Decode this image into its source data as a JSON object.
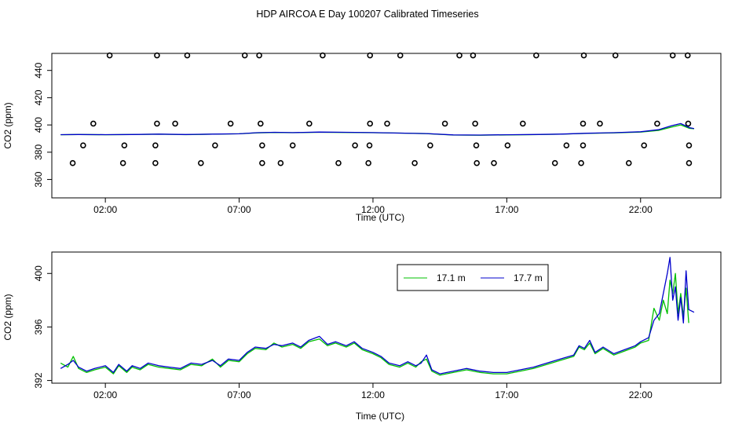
{
  "title": "HDP AIRCOA E  Day 100207  Calibrated Timeseries",
  "colors": {
    "series_17_1": "#00c000",
    "series_17_7": "#0000cc",
    "cal_points": "#000000",
    "background": "#ffffff"
  },
  "chart_data": [
    {
      "type": "line",
      "xlabel": "Time (UTC)",
      "ylabel": "CO2 (ppm)",
      "xlim": [
        0.0,
        25.0
      ],
      "ylim": [
        346.5,
        452.5
      ],
      "x_ticks": [
        2,
        7,
        12,
        17,
        22
      ],
      "x_tick_labels": [
        "02:00",
        "07:00",
        "12:00",
        "17:00",
        "22:00"
      ],
      "y_ticks": [
        360,
        380,
        400,
        420,
        440
      ],
      "y_tick_labels": [
        "360",
        "380",
        "400",
        "420",
        "440"
      ],
      "grid": false,
      "legend": "none",
      "cal_points": {
        "marker": "open-circle",
        "x": [
          2.16,
          3.93,
          5.06,
          7.21,
          7.75,
          10.12,
          11.89,
          13.02,
          15.23,
          15.74,
          18.1,
          19.88,
          21.06,
          23.2,
          23.76,
          1.55,
          3.93,
          4.61,
          6.68,
          7.8,
          9.62,
          11.89,
          12.53,
          14.69,
          15.82,
          17.6,
          19.85,
          20.48,
          22.62,
          23.78,
          1.17,
          2.71,
          3.87,
          6.1,
          7.86,
          9.0,
          11.33,
          11.87,
          14.14,
          15.86,
          17.03,
          19.23,
          19.85,
          22.13,
          23.81,
          0.78,
          2.66,
          3.87,
          5.57,
          7.86,
          8.55,
          10.71,
          11.83,
          13.56,
          15.88,
          16.52,
          18.8,
          19.78,
          21.56,
          23.81
        ],
        "y": [
          451,
          451,
          451,
          451,
          451,
          451,
          451,
          451,
          451,
          451,
          451,
          451,
          451,
          451,
          451,
          401,
          401,
          401,
          401,
          401,
          401,
          401,
          401,
          401,
          401,
          401,
          401,
          401,
          401,
          401,
          385,
          385,
          385,
          385,
          385,
          385,
          385,
          385,
          385,
          385,
          385,
          385,
          385,
          385,
          385,
          372,
          372,
          372,
          372,
          372,
          372,
          372,
          372,
          372,
          372,
          372,
          372,
          372,
          372,
          372
        ]
      },
      "series": [
        {
          "color": "#00c000",
          "x": [
            0.33,
            1.0,
            2.0,
            3.0,
            4.0,
            5.0,
            6.0,
            7.0,
            7.67,
            8.33,
            9.0,
            10.0,
            11.0,
            12.0,
            13.0,
            14.0,
            15.0,
            16.0,
            17.0,
            18.0,
            19.0,
            20.0,
            21.0,
            22.0,
            22.67,
            23.17,
            23.5,
            23.83,
            24.0
          ],
          "y": [
            392.8,
            393.0,
            392.8,
            393.0,
            393.2,
            392.9,
            393.2,
            393.5,
            394.2,
            394.5,
            394.3,
            394.6,
            394.5,
            394.3,
            394.0,
            393.6,
            392.6,
            392.5,
            392.7,
            392.9,
            393.2,
            393.8,
            394.2,
            394.8,
            396.0,
            398.5,
            400.0,
            397.5,
            397.2
          ]
        },
        {
          "color": "#0000cc",
          "x": [
            0.33,
            1.0,
            2.0,
            3.0,
            4.0,
            5.0,
            6.0,
            7.0,
            7.67,
            8.33,
            9.0,
            10.0,
            11.0,
            12.0,
            13.0,
            14.0,
            15.0,
            16.0,
            17.0,
            18.0,
            19.0,
            20.0,
            21.0,
            22.0,
            22.67,
            23.17,
            23.5,
            23.83,
            24.0
          ],
          "y": [
            392.9,
            393.0,
            392.9,
            393.0,
            393.3,
            393.0,
            393.3,
            393.5,
            394.3,
            394.6,
            394.4,
            394.8,
            394.6,
            394.4,
            394.0,
            393.7,
            392.7,
            392.6,
            392.8,
            393.0,
            393.3,
            393.9,
            394.3,
            395.0,
            396.5,
            399.5,
            401.0,
            398.0,
            397.3
          ]
        }
      ]
    },
    {
      "type": "line",
      "xlabel": "Time (UTC)",
      "ylabel": "CO2 (ppm)",
      "xlim": [
        0.0,
        25.0
      ],
      "ylim": [
        391.8,
        401.6
      ],
      "x_ticks": [
        2,
        7,
        12,
        17,
        22
      ],
      "x_tick_labels": [
        "02:00",
        "07:00",
        "12:00",
        "17:00",
        "22:00"
      ],
      "y_ticks": [
        392,
        396,
        400
      ],
      "y_tick_labels": [
        "392",
        "396",
        "400"
      ],
      "grid": false,
      "legend": "top-right",
      "series": [
        {
          "name": "17.1 m",
          "color": "#00c000",
          "x": [
            0.33,
            0.6,
            0.8,
            1.0,
            1.3,
            1.6,
            2.0,
            2.3,
            2.5,
            2.8,
            3.0,
            3.3,
            3.6,
            4.0,
            4.4,
            4.8,
            5.2,
            5.6,
            6.0,
            6.3,
            6.6,
            7.0,
            7.3,
            7.6,
            8.0,
            8.3,
            8.6,
            9.0,
            9.3,
            9.6,
            10.0,
            10.3,
            10.6,
            11.0,
            11.3,
            11.6,
            12.0,
            12.3,
            12.6,
            13.0,
            13.3,
            13.6,
            13.8,
            14.0,
            14.2,
            14.5,
            15.0,
            15.5,
            16.0,
            16.5,
            17.0,
            17.5,
            18.0,
            18.5,
            19.0,
            19.5,
            19.7,
            19.9,
            20.1,
            20.3,
            20.6,
            21.0,
            21.4,
            21.8,
            22.0,
            22.3,
            22.5,
            22.7,
            22.85,
            23.0,
            23.1,
            23.2,
            23.3,
            23.4,
            23.5,
            23.6,
            23.7,
            23.8
          ],
          "y": [
            393.3,
            393.0,
            393.8,
            392.9,
            392.6,
            392.8,
            393.0,
            392.5,
            393.1,
            392.6,
            393.0,
            392.8,
            393.2,
            393.0,
            392.9,
            392.8,
            393.2,
            393.1,
            393.6,
            393.0,
            393.5,
            393.4,
            394.0,
            394.4,
            394.3,
            394.8,
            394.5,
            394.7,
            394.4,
            394.9,
            395.1,
            394.6,
            394.8,
            394.5,
            394.8,
            394.3,
            394.0,
            393.7,
            393.2,
            393.0,
            393.3,
            393.0,
            393.4,
            393.6,
            392.7,
            392.4,
            392.6,
            392.8,
            392.6,
            392.5,
            392.5,
            392.7,
            392.9,
            393.2,
            393.5,
            393.8,
            394.5,
            394.3,
            394.8,
            394.0,
            394.4,
            393.9,
            394.2,
            394.5,
            394.8,
            395.0,
            397.4,
            396.5,
            398.0,
            397.0,
            399.5,
            398.5,
            400.0,
            397.0,
            398.5,
            396.8,
            398.9,
            396.3
          ]
        },
        {
          "name": "17.7 m",
          "color": "#0000cc",
          "x": [
            0.33,
            0.6,
            0.8,
            1.0,
            1.3,
            1.6,
            2.0,
            2.3,
            2.5,
            2.8,
            3.0,
            3.3,
            3.6,
            4.0,
            4.4,
            4.8,
            5.2,
            5.6,
            6.0,
            6.3,
            6.6,
            7.0,
            7.3,
            7.6,
            8.0,
            8.3,
            8.6,
            9.0,
            9.3,
            9.6,
            10.0,
            10.3,
            10.6,
            11.0,
            11.3,
            11.6,
            12.0,
            12.3,
            12.6,
            13.0,
            13.3,
            13.6,
            13.8,
            14.0,
            14.2,
            14.5,
            15.0,
            15.5,
            16.0,
            16.5,
            17.0,
            17.5,
            18.0,
            18.5,
            19.0,
            19.5,
            19.7,
            19.9,
            20.1,
            20.3,
            20.6,
            21.0,
            21.4,
            21.8,
            22.0,
            22.3,
            22.5,
            22.7,
            22.85,
            23.0,
            23.1,
            23.2,
            23.3,
            23.4,
            23.5,
            23.6,
            23.7,
            23.8,
            24.0
          ],
          "y": [
            392.9,
            393.2,
            393.5,
            393.0,
            392.7,
            392.9,
            393.1,
            392.6,
            393.2,
            392.7,
            393.1,
            392.9,
            393.3,
            393.1,
            393.0,
            392.9,
            393.3,
            393.2,
            393.5,
            393.1,
            393.6,
            393.5,
            394.1,
            394.5,
            394.4,
            394.7,
            394.6,
            394.8,
            394.5,
            395.0,
            395.3,
            394.7,
            394.9,
            394.6,
            394.9,
            394.4,
            394.1,
            393.8,
            393.3,
            393.1,
            393.4,
            393.1,
            393.3,
            393.9,
            392.8,
            392.5,
            392.7,
            392.9,
            392.7,
            392.6,
            392.6,
            392.8,
            393.0,
            393.3,
            393.6,
            393.9,
            394.6,
            394.4,
            395.0,
            394.1,
            394.5,
            394.0,
            394.3,
            394.6,
            394.9,
            395.2,
            396.5,
            397.0,
            398.5,
            400.0,
            401.2,
            398.0,
            399.0,
            396.5,
            398.2,
            396.3,
            400.2,
            397.3,
            397.1
          ]
        }
      ]
    }
  ]
}
